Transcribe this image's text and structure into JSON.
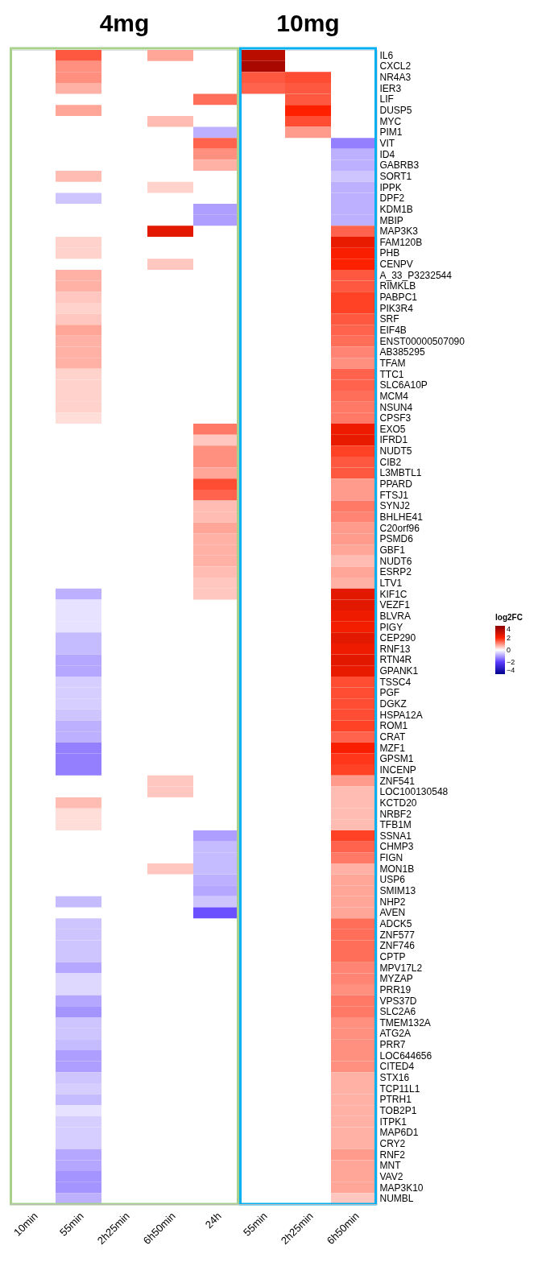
{
  "chart_data": {
    "type": "heatmap",
    "annotations": [
      "4mg",
      "10mg"
    ],
    "categories": [
      "10min",
      "55min",
      "2h25min",
      "6h50min",
      "24h",
      "55min",
      "2h25min",
      "6h50min"
    ],
    "y_categories": [
      "IL6",
      "CXCL2",
      "NR4A3",
      "IER3",
      "LIF",
      "DUSP5",
      "MYC",
      "PIM1",
      "VIT",
      "ID4",
      "GABRB3",
      "SORT1",
      "IPPK",
      "DPF2",
      "KDM1B",
      "MBIP",
      "MAP3K3",
      "FAM120B",
      "PHB",
      "CENPV",
      "A_33_P3232544",
      "RIMKLB",
      "PABPC1",
      "PIK3R4",
      "SRF",
      "EIF4B",
      "ENST00000507090",
      "AB385295",
      "TFAM",
      "TTC1",
      "SLC6A10P",
      "MCM4",
      "NSUN4",
      "CPSF3",
      "EXO5",
      "IFRD1",
      "NUDT5",
      "CIB2",
      "L3MBTL1",
      "PPARD",
      "FTSJ1",
      "SYNJ2",
      "BHLHE41",
      "C20orf96",
      "PSMD6",
      "GBF1",
      "NUDT6",
      "ESRP2",
      "LTV1",
      "KIF1C",
      "VEZF1",
      "BLVRA",
      "PIGY",
      "CEP290",
      "RNF13",
      "RTN4R",
      "GPANK1",
      "TSSC4",
      "PGF",
      "DGKZ",
      "HSPA12A",
      "ROM1",
      "CRAT",
      "MZF1",
      "GPSM1",
      "INCENP",
      "ZNF541",
      "LOC100130548",
      "KCTD20",
      "NRBF2",
      "TFB1M",
      "SSNA1",
      "CHMP3",
      "FIGN",
      "MON1B",
      "USP6",
      "SMIM13",
      "NHP2",
      "AVEN",
      "ADCK5",
      "ZNF577",
      "ZNF746",
      "CPTP",
      "MPV17L2",
      "MYZAP",
      "PRR19",
      "VPS37D",
      "SLC2A6",
      "TMEM132A",
      "ATG2A",
      "PRR7",
      "LOC644656",
      "CITED4",
      "STX16",
      "TCP11L1",
      "PTRH1",
      "TOB2P1",
      "ITPK1",
      "MAP6D1",
      "CRY2",
      "RNF2",
      "MNT",
      "VAV2",
      "MAP3K10",
      "NUMBL"
    ],
    "cells": [
      [
        null,
        1.5,
        null,
        0.8,
        null,
        3.2,
        null,
        null
      ],
      [
        null,
        1.0,
        null,
        null,
        null,
        3.5,
        null,
        null
      ],
      [
        null,
        1.0,
        null,
        null,
        null,
        1.5,
        1.6,
        null
      ],
      [
        null,
        0.7,
        null,
        null,
        null,
        1.4,
        1.5,
        null
      ],
      [
        null,
        null,
        null,
        null,
        1.3,
        null,
        1.5,
        null
      ],
      [
        null,
        0.8,
        null,
        null,
        null,
        null,
        2.0,
        null
      ],
      [
        null,
        null,
        null,
        0.6,
        null,
        null,
        1.6,
        null
      ],
      [
        null,
        null,
        null,
        null,
        -0.8,
        null,
        0.9,
        null
      ],
      [
        null,
        null,
        null,
        null,
        1.4,
        null,
        null,
        -1.3
      ],
      [
        null,
        null,
        null,
        null,
        1.0,
        null,
        null,
        -0.8
      ],
      [
        null,
        null,
        null,
        null,
        0.7,
        null,
        null,
        -0.8
      ],
      [
        null,
        0.6,
        null,
        null,
        null,
        null,
        null,
        -0.6
      ],
      [
        null,
        null,
        null,
        0.4,
        null,
        null,
        null,
        -0.8
      ],
      [
        null,
        -0.6,
        null,
        null,
        null,
        null,
        null,
        -0.8
      ],
      [
        null,
        null,
        null,
        null,
        -1.0,
        null,
        null,
        -0.8
      ],
      [
        null,
        null,
        null,
        null,
        -1.0,
        null,
        null,
        -0.8
      ],
      [
        null,
        null,
        null,
        2.5,
        null,
        null,
        null,
        1.4
      ],
      [
        null,
        0.4,
        null,
        null,
        null,
        null,
        null,
        2.4
      ],
      [
        null,
        0.4,
        null,
        null,
        null,
        null,
        null,
        2.1
      ],
      [
        null,
        null,
        null,
        0.5,
        null,
        null,
        null,
        2.0
      ],
      [
        null,
        0.7,
        null,
        null,
        null,
        null,
        null,
        1.5
      ],
      [
        null,
        0.7,
        null,
        null,
        null,
        null,
        null,
        1.5
      ],
      [
        null,
        0.5,
        null,
        null,
        null,
        null,
        null,
        1.7
      ],
      [
        null,
        0.4,
        null,
        null,
        null,
        null,
        null,
        1.7
      ],
      [
        null,
        0.5,
        null,
        null,
        null,
        null,
        null,
        1.5
      ],
      [
        null,
        0.8,
        null,
        null,
        null,
        null,
        null,
        1.4
      ],
      [
        null,
        0.7,
        null,
        null,
        null,
        null,
        null,
        1.3
      ],
      [
        null,
        0.7,
        null,
        null,
        null,
        null,
        null,
        1.1
      ],
      [
        null,
        0.7,
        null,
        null,
        null,
        null,
        null,
        1.0
      ],
      [
        null,
        0.4,
        null,
        null,
        null,
        null,
        null,
        1.4
      ],
      [
        null,
        0.4,
        null,
        null,
        null,
        null,
        null,
        1.4
      ],
      [
        null,
        0.4,
        null,
        null,
        null,
        null,
        null,
        1.3
      ],
      [
        null,
        0.4,
        null,
        null,
        null,
        null,
        null,
        1.2
      ],
      [
        null,
        0.3,
        null,
        null,
        null,
        null,
        null,
        1.2
      ],
      [
        null,
        null,
        null,
        null,
        1.2,
        null,
        null,
        2.3
      ],
      [
        null,
        null,
        null,
        null,
        0.5,
        null,
        null,
        2.4
      ],
      [
        null,
        null,
        null,
        null,
        1.0,
        null,
        null,
        1.7
      ],
      [
        null,
        null,
        null,
        null,
        1.0,
        null,
        null,
        1.5
      ],
      [
        null,
        null,
        null,
        null,
        0.8,
        null,
        null,
        1.5
      ],
      [
        null,
        null,
        null,
        null,
        1.6,
        null,
        null,
        0.9
      ],
      [
        null,
        null,
        null,
        null,
        1.4,
        null,
        null,
        0.9
      ],
      [
        null,
        null,
        null,
        null,
        0.6,
        null,
        null,
        1.2
      ],
      [
        null,
        null,
        null,
        null,
        0.6,
        null,
        null,
        1.1
      ],
      [
        null,
        null,
        null,
        null,
        0.8,
        null,
        null,
        0.9
      ],
      [
        null,
        null,
        null,
        null,
        0.7,
        null,
        null,
        0.9
      ],
      [
        null,
        null,
        null,
        null,
        0.7,
        null,
        null,
        0.8
      ],
      [
        null,
        null,
        null,
        null,
        0.7,
        null,
        null,
        0.6
      ],
      [
        null,
        null,
        null,
        null,
        0.6,
        null,
        null,
        0.8
      ],
      [
        null,
        null,
        null,
        null,
        0.5,
        null,
        null,
        0.7
      ],
      [
        null,
        -0.8,
        null,
        null,
        0.5,
        null,
        null,
        2.5
      ],
      [
        null,
        -0.3,
        null,
        null,
        null,
        null,
        null,
        2.5
      ],
      [
        null,
        -0.3,
        null,
        null,
        null,
        null,
        null,
        2.3
      ],
      [
        null,
        -0.3,
        null,
        null,
        null,
        null,
        null,
        2.2
      ],
      [
        null,
        -0.7,
        null,
        null,
        null,
        null,
        null,
        2.5
      ],
      [
        null,
        -0.7,
        null,
        null,
        null,
        null,
        null,
        2.3
      ],
      [
        null,
        -0.9,
        null,
        null,
        null,
        null,
        null,
        2.5
      ],
      [
        null,
        -0.9,
        null,
        null,
        null,
        null,
        null,
        2.4
      ],
      [
        null,
        -0.5,
        null,
        null,
        null,
        null,
        null,
        1.6
      ],
      [
        null,
        -0.5,
        null,
        null,
        null,
        null,
        null,
        1.6
      ],
      [
        null,
        -0.5,
        null,
        null,
        null,
        null,
        null,
        1.6
      ],
      [
        null,
        -0.6,
        null,
        null,
        null,
        null,
        null,
        1.6
      ],
      [
        null,
        -0.8,
        null,
        null,
        null,
        null,
        null,
        1.7
      ],
      [
        null,
        -0.8,
        null,
        null,
        null,
        null,
        null,
        1.4
      ],
      [
        null,
        -1.3,
        null,
        null,
        null,
        null,
        null,
        2.1
      ],
      [
        null,
        -1.3,
        null,
        null,
        null,
        null,
        null,
        1.8
      ],
      [
        null,
        -1.3,
        null,
        null,
        null,
        null,
        null,
        1.7
      ],
      [
        null,
        null,
        null,
        0.5,
        null,
        null,
        null,
        0.9
      ],
      [
        null,
        null,
        null,
        0.5,
        null,
        null,
        null,
        0.6
      ],
      [
        null,
        0.6,
        null,
        null,
        null,
        null,
        null,
        0.6
      ],
      [
        null,
        0.3,
        null,
        null,
        null,
        null,
        null,
        0.6
      ],
      [
        null,
        0.3,
        null,
        null,
        null,
        null,
        null,
        0.6
      ],
      [
        null,
        null,
        null,
        null,
        -1.0,
        null,
        null,
        1.7
      ],
      [
        null,
        null,
        null,
        null,
        -0.7,
        null,
        null,
        1.4
      ],
      [
        null,
        null,
        null,
        null,
        -0.7,
        null,
        null,
        1.2
      ],
      [
        null,
        null,
        null,
        0.5,
        -0.7,
        null,
        null,
        0.7
      ],
      [
        null,
        null,
        null,
        null,
        -0.8,
        null,
        null,
        0.8
      ],
      [
        null,
        null,
        null,
        null,
        -0.9,
        null,
        null,
        0.8
      ],
      [
        null,
        -0.7,
        null,
        null,
        -0.6,
        null,
        null,
        0.8
      ],
      [
        null,
        null,
        null,
        null,
        -1.8,
        null,
        null,
        0.8
      ],
      [
        null,
        -0.6,
        null,
        null,
        null,
        null,
        null,
        1.3
      ],
      [
        null,
        -0.6,
        null,
        null,
        null,
        null,
        null,
        1.3
      ],
      [
        null,
        -0.6,
        null,
        null,
        null,
        null,
        null,
        1.3
      ],
      [
        null,
        -0.6,
        null,
        null,
        null,
        null,
        null,
        1.3
      ],
      [
        null,
        -0.9,
        null,
        null,
        null,
        null,
        null,
        1.1
      ],
      [
        null,
        -0.4,
        null,
        null,
        null,
        null,
        null,
        1.1
      ],
      [
        null,
        -0.4,
        null,
        null,
        null,
        null,
        null,
        1.0
      ],
      [
        null,
        -0.9,
        null,
        null,
        null,
        null,
        null,
        1.2
      ],
      [
        null,
        -1.1,
        null,
        null,
        null,
        null,
        null,
        1.2
      ],
      [
        null,
        -0.6,
        null,
        null,
        null,
        null,
        null,
        1.0
      ],
      [
        null,
        -0.6,
        null,
        null,
        null,
        null,
        null,
        1.0
      ],
      [
        null,
        -0.7,
        null,
        null,
        null,
        null,
        null,
        1.0
      ],
      [
        null,
        -1.0,
        null,
        null,
        null,
        null,
        null,
        1.0
      ],
      [
        null,
        -1.0,
        null,
        null,
        null,
        null,
        null,
        1.0
      ],
      [
        null,
        -0.6,
        null,
        null,
        null,
        null,
        null,
        0.7
      ],
      [
        null,
        -0.5,
        null,
        null,
        null,
        null,
        null,
        0.7
      ],
      [
        null,
        -0.7,
        null,
        null,
        null,
        null,
        null,
        0.7
      ],
      [
        null,
        -0.3,
        null,
        null,
        null,
        null,
        null,
        0.7
      ],
      [
        null,
        -0.5,
        null,
        null,
        null,
        null,
        null,
        0.7
      ],
      [
        null,
        -0.5,
        null,
        null,
        null,
        null,
        null,
        0.7
      ],
      [
        null,
        -0.5,
        null,
        null,
        null,
        null,
        null,
        0.7
      ],
      [
        null,
        -0.9,
        null,
        null,
        null,
        null,
        null,
        0.9
      ],
      [
        null,
        -0.9,
        null,
        null,
        null,
        null,
        null,
        0.8
      ],
      [
        null,
        -1.1,
        null,
        null,
        null,
        null,
        null,
        0.8
      ],
      [
        null,
        -1.1,
        null,
        null,
        null,
        null,
        null,
        0.8
      ],
      [
        null,
        -0.8,
        null,
        null,
        null,
        null,
        null,
        0.5
      ]
    ],
    "clim": [
      -4,
      4
    ],
    "cticks": [
      -4,
      -2,
      0,
      2,
      4
    ],
    "legend_title": "log2FC"
  }
}
